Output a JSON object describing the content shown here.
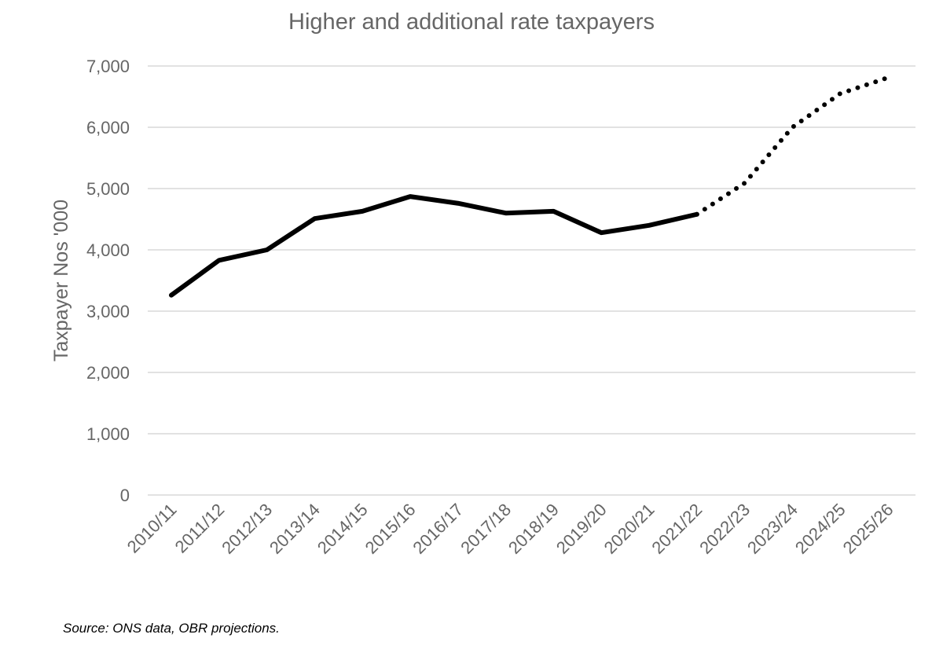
{
  "chart_data": {
    "type": "line",
    "title": "Higher and additional rate taxpayers",
    "xlabel": "",
    "ylabel": "Taxpayer Nos '000",
    "ylim": [
      0,
      7000
    ],
    "yticks": [
      "0",
      "1,000",
      "2,000",
      "3,000",
      "4,000",
      "5,000",
      "6,000",
      "7,000"
    ],
    "ytick_values": [
      0,
      1000,
      2000,
      3000,
      4000,
      5000,
      6000,
      7000
    ],
    "grid": true,
    "categories": [
      "2010/11",
      "2011/12",
      "2012/13",
      "2013/14",
      "2014/15",
      "2015/16",
      "2016/17",
      "2017/18",
      "2018/19",
      "2019/20",
      "2020/21",
      "2021/22",
      "2022/23",
      "2023/24",
      "2024/25",
      "2025/26"
    ],
    "series": [
      {
        "style": "solid",
        "color": "#000000",
        "values": [
          3260,
          3830,
          4000,
          4510,
          4630,
          4870,
          4760,
          4600,
          4630,
          4280,
          4400,
          4580,
          null,
          null,
          null,
          null
        ]
      },
      {
        "style": "dotted",
        "color": "#000000",
        "values": [
          null,
          null,
          null,
          null,
          null,
          null,
          null,
          null,
          null,
          null,
          null,
          4580,
          5090,
          6000,
          6550,
          6810
        ]
      }
    ]
  },
  "source": "Source: ONS data, OBR projections."
}
